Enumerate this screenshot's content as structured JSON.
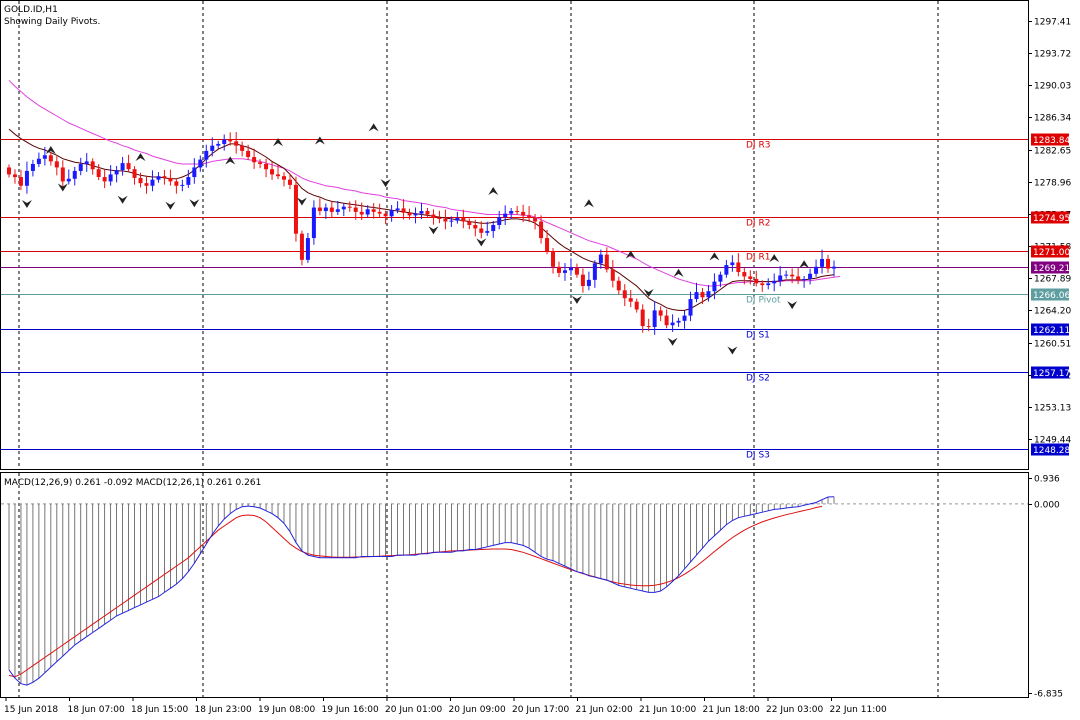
{
  "header": {
    "symbol": "GOLD.ID,H1",
    "subtitle": "Showing Daily Pivots."
  },
  "macd_header": "MACD(12,26,9) 0.261 -0.092 MACD(12,26,1) 0.261 0.261",
  "colors": {
    "bull": "#1a1aff",
    "bear": "#ee1111",
    "ma_fast": "#5a0000",
    "ma_slow": "#e040e0",
    "resistance": "#dd0000",
    "support": "#0000cc",
    "pivot": "#5f9ea0",
    "current": "#800080",
    "macd_main": "#2222dd",
    "macd_signal": "#dd1111"
  },
  "chart_data": [
    {
      "type": "candlestick",
      "title": "GOLD.ID,H1",
      "ylim": [
        1246.0,
        1299.7
      ],
      "price_ticks": [
        1297.41,
        1293.72,
        1290.03,
        1286.34,
        1282.65,
        1278.96,
        1275.27,
        1271.58,
        1267.89,
        1264.2,
        1260.51,
        1256.82,
        1253.13,
        1249.44
      ],
      "x_ticks": [
        "15 Jun 2018",
        "18 Jun 07:00",
        "18 Jun 15:00",
        "18 Jun 23:00",
        "19 Jun 08:00",
        "19 Jun 16:00",
        "20 Jun 01:00",
        "20 Jun 09:00",
        "20 Jun 17:00",
        "21 Jun 02:00",
        "21 Jun 10:00",
        "21 Jun 18:00",
        "22 Jun 03:00",
        "22 Jun 11:00"
      ],
      "pivot_levels": [
        {
          "name": "DJ R3",
          "value": 1283.84,
          "label": "1283.84",
          "kind": "resistance"
        },
        {
          "name": "DJ R2",
          "value": 1274.95,
          "label": "1274.95",
          "kind": "resistance"
        },
        {
          "name": "DJ R1",
          "value": 1271.0,
          "label": "1271.00",
          "kind": "resistance"
        },
        {
          "name": "DJ Pivot",
          "value": 1266.06,
          "label": "1266.06",
          "kind": "pivot"
        },
        {
          "name": "DJ S1",
          "value": 1262.11,
          "label": "1262.11",
          "kind": "support"
        },
        {
          "name": "DJ S2",
          "value": 1257.17,
          "label": "1257.17",
          "kind": "support"
        },
        {
          "name": "DJ S3",
          "value": 1248.28,
          "label": "1248.28",
          "kind": "support"
        }
      ],
      "current_price": {
        "value": 1269.21,
        "label": "1269.21"
      },
      "closes": [
        1279.8,
        1279.5,
        1278.5,
        1280.2,
        1281.0,
        1281.6,
        1282.0,
        1281.3,
        1280.6,
        1279.0,
        1279.3,
        1280.2,
        1281.0,
        1281.3,
        1280.4,
        1279.5,
        1279.0,
        1279.8,
        1280.3,
        1281.1,
        1280.4,
        1279.4,
        1278.8,
        1278.5,
        1279.2,
        1279.6,
        1279.4,
        1279.0,
        1278.5,
        1278.6,
        1279.5,
        1280.6,
        1281.5,
        1282.5,
        1283.1,
        1283.3,
        1283.8,
        1283.6,
        1283.1,
        1282.5,
        1281.8,
        1281.2,
        1281.0,
        1280.4,
        1279.8,
        1279.6,
        1279.2,
        1278.6,
        1273.0,
        1270.0,
        1272.5,
        1276.0,
        1275.6,
        1276.0,
        1275.5,
        1275.8,
        1276.1,
        1276.0,
        1275.5,
        1275.2,
        1275.8,
        1275.5,
        1275.3,
        1275.0,
        1275.7,
        1275.9,
        1275.4,
        1275.1,
        1275.3,
        1275.6,
        1275.2,
        1274.8,
        1274.7,
        1274.4,
        1274.5,
        1274.8,
        1274.4,
        1274.0,
        1273.6,
        1273.1,
        1273.3,
        1274.0,
        1274.9,
        1275.3,
        1275.6,
        1275.5,
        1275.1,
        1274.8,
        1274.4,
        1272.5,
        1271.0,
        1269.2,
        1268.5,
        1268.8,
        1269.1,
        1268.3,
        1267.0,
        1267.7,
        1269.6,
        1270.6,
        1268.9,
        1267.6,
        1266.5,
        1265.6,
        1265.2,
        1264.3,
        1262.4,
        1262.3,
        1264.2,
        1263.6,
        1262.5,
        1262.8,
        1263.0,
        1263.6,
        1265.5,
        1266.3,
        1265.7,
        1266.4,
        1267.5,
        1268.3,
        1269.4,
        1269.7,
        1268.6,
        1268.1,
        1267.8,
        1267.3,
        1267.1,
        1267.3,
        1267.6,
        1268.2,
        1268.3,
        1268.1,
        1267.7,
        1267.8,
        1268.4,
        1269.2,
        1270.1,
        1269.0,
        1269.21
      ],
      "ma_fast": [
        1285,
        1284.4,
        1283.9,
        1283.5,
        1283.1,
        1282.8,
        1282.6,
        1282.3,
        1282,
        1281.6,
        1281.4,
        1281.2,
        1281.1,
        1281,
        1280.8,
        1280.6,
        1280.4,
        1280.3,
        1280.2,
        1280.2,
        1280.1,
        1279.9,
        1279.7,
        1279.6,
        1279.5,
        1279.5,
        1279.4,
        1279.3,
        1279.3,
        1279.5,
        1279.8,
        1280.3,
        1280.9,
        1281.6,
        1282.2,
        1282.7,
        1283,
        1283.3,
        1283.3,
        1283.1,
        1282.9,
        1282.6,
        1282.2,
        1281.8,
        1281.3,
        1280.9,
        1280.5,
        1279.8,
        1279,
        1278.2,
        1277.7,
        1277.4,
        1277.2,
        1276.9,
        1276.7,
        1276.6,
        1276.5,
        1276.4,
        1276.3,
        1276.2,
        1276.1,
        1276,
        1275.9,
        1275.8,
        1275.7,
        1275.6,
        1275.5,
        1275.4,
        1275.3,
        1275.2,
        1275.1,
        1275,
        1274.9,
        1274.8,
        1274.7,
        1274.6,
        1274.5,
        1274.4,
        1274.3,
        1274.2,
        1274.2,
        1274.3,
        1274.4,
        1274.6,
        1274.7,
        1274.7,
        1274.6,
        1274.5,
        1274.2,
        1273.7,
        1273.1,
        1272.5,
        1271.9,
        1271.4,
        1271,
        1270.6,
        1270.2,
        1269.9,
        1269.7,
        1269.5,
        1269.3,
        1268.9,
        1268.5,
        1268,
        1267.5,
        1267,
        1266.3,
        1265.6,
        1265.2,
        1264.9,
        1264.5,
        1264.3,
        1264.2,
        1264.2,
        1264.4,
        1264.8,
        1265.2,
        1265.6,
        1266.1,
        1266.6,
        1267.1,
        1267.5,
        1267.6,
        1267.6,
        1267.6,
        1267.5,
        1267.5,
        1267.5,
        1267.5,
        1267.6,
        1267.7,
        1267.7,
        1267.7,
        1267.7,
        1267.8,
        1267.9,
        1268.1,
        1268.2,
        1268.3
      ],
      "ma_slow": [
        1290.6,
        1289.9,
        1289.3,
        1288.7,
        1288.2,
        1287.7,
        1287.3,
        1286.9,
        1286.5,
        1286.1,
        1285.7,
        1285.4,
        1285.1,
        1284.8,
        1284.5,
        1284.2,
        1283.9,
        1283.6,
        1283.4,
        1283.1,
        1282.9,
        1282.6,
        1282.4,
        1282.2,
        1281.9,
        1281.7,
        1281.5,
        1281.3,
        1281.1,
        1281,
        1281,
        1281,
        1281,
        1281.1,
        1281.3,
        1281.4,
        1281.5,
        1281.6,
        1281.6,
        1281.6,
        1281.5,
        1281.4,
        1281.3,
        1281.1,
        1280.9,
        1280.7,
        1280.5,
        1280.2,
        1279.8,
        1279.4,
        1279.1,
        1278.9,
        1278.7,
        1278.5,
        1278.4,
        1278.3,
        1278.1,
        1278,
        1277.9,
        1277.7,
        1277.6,
        1277.5,
        1277.4,
        1277.2,
        1277.1,
        1277,
        1276.8,
        1276.7,
        1276.6,
        1276.5,
        1276.4,
        1276.2,
        1276.1,
        1276,
        1275.8,
        1275.7,
        1275.6,
        1275.5,
        1275.4,
        1275.3,
        1275.2,
        1275.2,
        1275.2,
        1275.2,
        1275.2,
        1275.2,
        1275.1,
        1275.1,
        1274.9,
        1274.6,
        1274.3,
        1274,
        1273.7,
        1273.4,
        1273.1,
        1272.8,
        1272.5,
        1272.2,
        1272,
        1271.8,
        1271.6,
        1271.3,
        1271,
        1270.7,
        1270.4,
        1270.1,
        1269.7,
        1269.3,
        1269,
        1268.7,
        1268.4,
        1268.1,
        1267.8,
        1267.6,
        1267.4,
        1267.2,
        1267.1,
        1267,
        1267,
        1267.1,
        1267.2,
        1267.3,
        1267.4,
        1267.4,
        1267.5,
        1267.5,
        1267.5,
        1267.5,
        1267.5,
        1267.5,
        1267.6,
        1267.6,
        1267.6,
        1267.6,
        1267.6,
        1267.7,
        1267.8,
        1267.9,
        1268,
        1268.1
      ],
      "fractals": {
        "up": [
          1282.6,
          1281.8,
          1281.4,
          1283.5,
          1283.7,
          1285.2,
          1277.9,
          1276.5,
          1270.4,
          1270.2,
          1269.5,
          1268.5,
          1270.6
        ],
        "down": [
          1276.4,
          1278.3,
          1276.9,
          1276.2,
          1276.5,
          1276.7,
          1278.8,
          1273.4,
          1272.0,
          1265.4,
          1266.2,
          1260.6,
          1259.6,
          1264.8
        ]
      }
    },
    {
      "type": "line",
      "title": "MACD(12,26,9) 0.261 -0.092 MACD(12,26,1) 0.261 0.261",
      "ylim": [
        -6.835,
        0.936
      ],
      "y_ticks": [
        0.936,
        0.0,
        -6.835
      ],
      "series": [
        {
          "name": "MACD(12,26,9)",
          "values": [
            -6.0,
            -6.3,
            -6.5,
            -6.55,
            -6.45,
            -6.3,
            -6.1,
            -5.9,
            -5.7,
            -5.5,
            -5.3,
            -5.1,
            -4.95,
            -4.8,
            -4.65,
            -4.5,
            -4.35,
            -4.2,
            -4.05,
            -3.95,
            -3.85,
            -3.75,
            -3.65,
            -3.55,
            -3.45,
            -3.35,
            -3.2,
            -3.05,
            -2.9,
            -2.7,
            -2.45,
            -2.15,
            -1.8,
            -1.45,
            -1.1,
            -0.8,
            -0.55,
            -0.35,
            -0.2,
            -0.1,
            -0.08,
            -0.1,
            -0.15,
            -0.25,
            -0.35,
            -0.5,
            -0.7,
            -1.0,
            -1.4,
            -1.7,
            -1.85,
            -1.9,
            -1.95,
            -1.95,
            -1.95,
            -1.95,
            -1.95,
            -1.95,
            -1.95,
            -1.9,
            -1.9,
            -1.9,
            -1.9,
            -1.9,
            -1.9,
            -1.85,
            -1.85,
            -1.85,
            -1.85,
            -1.8,
            -1.8,
            -1.75,
            -1.75,
            -1.75,
            -1.75,
            -1.7,
            -1.7,
            -1.65,
            -1.65,
            -1.6,
            -1.55,
            -1.5,
            -1.45,
            -1.4,
            -1.4,
            -1.45,
            -1.5,
            -1.6,
            -1.75,
            -1.9,
            -2.0,
            -2.05,
            -2.15,
            -2.25,
            -2.35,
            -2.45,
            -2.5,
            -2.6,
            -2.65,
            -2.7,
            -2.75,
            -2.85,
            -2.95,
            -3.0,
            -3.05,
            -3.1,
            -3.15,
            -3.2,
            -3.2,
            -3.15,
            -3.0,
            -2.8,
            -2.6,
            -2.35,
            -2.1,
            -1.85,
            -1.6,
            -1.35,
            -1.15,
            -0.95,
            -0.75,
            -0.6,
            -0.5,
            -0.45,
            -0.4,
            -0.35,
            -0.3,
            -0.25,
            -0.2,
            -0.18,
            -0.15,
            -0.12,
            -0.1,
            -0.05,
            0.0,
            0.05,
            0.15,
            0.25,
            0.261
          ]
        },
        {
          "name": "MACD(12,26,1)",
          "values": [
            -6.2,
            -6.25,
            -6.15,
            -6.0,
            -5.85,
            -5.7,
            -5.55,
            -5.4,
            -5.25,
            -5.1,
            -4.95,
            -4.8,
            -4.65,
            -4.5,
            -4.35,
            -4.2,
            -4.05,
            -3.9,
            -3.75,
            -3.6,
            -3.45,
            -3.3,
            -3.15,
            -3.0,
            -2.85,
            -2.7,
            -2.55,
            -2.4,
            -2.25,
            -2.1,
            -1.95,
            -1.75,
            -1.55,
            -1.35,
            -1.15,
            -0.95,
            -0.8,
            -0.65,
            -0.5,
            -0.42,
            -0.4,
            -0.42,
            -0.5,
            -0.65,
            -0.85,
            -1.05,
            -1.25,
            -1.45,
            -1.6,
            -1.72,
            -1.8,
            -1.85,
            -1.88,
            -1.9,
            -1.92,
            -1.93,
            -1.93,
            -1.93,
            -1.92,
            -1.92,
            -1.91,
            -1.9,
            -1.89,
            -1.88,
            -1.87,
            -1.86,
            -1.85,
            -1.84,
            -1.82,
            -1.8,
            -1.78,
            -1.76,
            -1.74,
            -1.72,
            -1.7,
            -1.69,
            -1.68,
            -1.67,
            -1.66,
            -1.65,
            -1.64,
            -1.63,
            -1.63,
            -1.63,
            -1.65,
            -1.7,
            -1.75,
            -1.82,
            -1.9,
            -1.98,
            -2.06,
            -2.14,
            -2.22,
            -2.3,
            -2.38,
            -2.45,
            -2.52,
            -2.58,
            -2.64,
            -2.7,
            -2.76,
            -2.82,
            -2.87,
            -2.9,
            -2.93,
            -2.95,
            -2.96,
            -2.96,
            -2.94,
            -2.9,
            -2.84,
            -2.76,
            -2.66,
            -2.54,
            -2.4,
            -2.25,
            -2.08,
            -1.9,
            -1.72,
            -1.55,
            -1.38,
            -1.22,
            -1.08,
            -0.95,
            -0.84,
            -0.74,
            -0.65,
            -0.58,
            -0.51,
            -0.45,
            -0.39,
            -0.34,
            -0.29,
            -0.24,
            -0.19,
            -0.13,
            -0.09
          ]
        }
      ]
    }
  ]
}
